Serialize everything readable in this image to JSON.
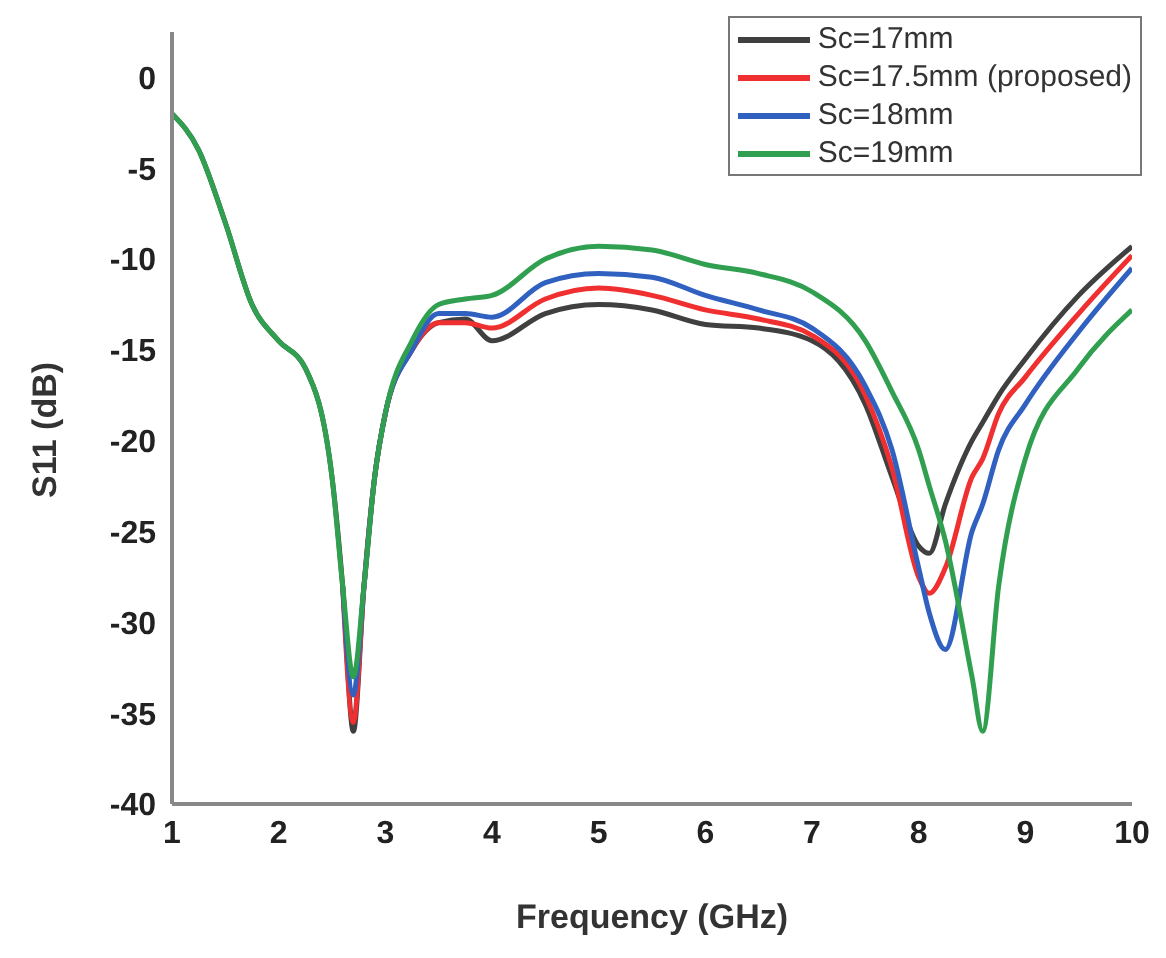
{
  "chart_data": {
    "type": "line",
    "xlabel": "Frequency (GHz)",
    "ylabel": "S11 (dB)",
    "x": [
      1,
      1.25,
      1.5,
      1.75,
      2,
      2.25,
      2.5,
      2.6,
      2.7,
      2.8,
      2.9,
      3,
      3.25,
      3.5,
      3.75,
      4,
      4.5,
      5,
      5.5,
      6,
      6.5,
      7,
      7.5,
      7.75,
      8,
      8.1,
      8.25,
      8.5,
      8.6,
      8.75,
      9,
      9.5,
      10
    ],
    "series": [
      {
        "name": "Sc=17mm",
        "color": "#404040",
        "values": [
          -2,
          -4,
          -8,
          -12.5,
          -14.5,
          -16,
          -22,
          -28,
          -36,
          -28,
          -22,
          -18.5,
          -15,
          -13.5,
          -13.3,
          -14.5,
          -13,
          -12.5,
          -12.8,
          -13.6,
          -13.8,
          -14.5,
          -18,
          -22,
          -25.8,
          -26.2,
          -23.5,
          -20,
          -19,
          -17.5,
          -15.5,
          -12,
          -9.3
        ]
      },
      {
        "name": "Sc=17.5mm (proposed)",
        "color": "#f03030",
        "values": [
          null,
          null,
          null,
          null,
          null,
          null,
          null,
          -28,
          -35.5,
          -28,
          -22,
          -18.5,
          -15,
          -13.5,
          -13.5,
          -13.8,
          -12.2,
          -11.6,
          -12,
          -12.8,
          -13.3,
          -14.2,
          -17.5,
          -21.5,
          -27.5,
          -28.4,
          -27,
          -22,
          -21,
          -18.5,
          -16.5,
          -13,
          -9.8
        ]
      },
      {
        "name": "Sc=18mm",
        "color": "#3060c0",
        "values": [
          null,
          null,
          null,
          null,
          null,
          null,
          null,
          -28,
          -34,
          -28,
          -22,
          -18.5,
          -15,
          -13,
          -13,
          -13.2,
          -11.3,
          -10.8,
          -11,
          -12,
          -12.8,
          -13.8,
          -17,
          -20.5,
          -27,
          -29.5,
          -31.5,
          -25,
          -23.5,
          -20.5,
          -18,
          -14,
          -10.5
        ]
      },
      {
        "name": "Sc=19mm",
        "color": "#30a050",
        "values": [
          -2,
          -4,
          -8,
          -12.5,
          -14.5,
          -16,
          -22,
          -28,
          -33,
          -28,
          -22,
          -18.5,
          -14.5,
          -12.5,
          -12.2,
          -12,
          -10,
          -9.3,
          -9.5,
          -10.3,
          -10.8,
          -11.8,
          -14.5,
          -17.3,
          -20.5,
          -22.5,
          -25.5,
          -33,
          -36,
          -28,
          -21,
          -16,
          -12.8
        ]
      }
    ],
    "xlim": [
      1,
      10
    ],
    "xticks": [
      1,
      2,
      3,
      4,
      5,
      6,
      7,
      8,
      9,
      10
    ],
    "ylim": [
      -40,
      2.5
    ],
    "yticks": [
      -40,
      -35,
      -30,
      -25,
      -20,
      -15,
      -10,
      -5,
      0
    ],
    "grid": false,
    "legend": "top right",
    "marker": "none",
    "line_style": "solid"
  }
}
